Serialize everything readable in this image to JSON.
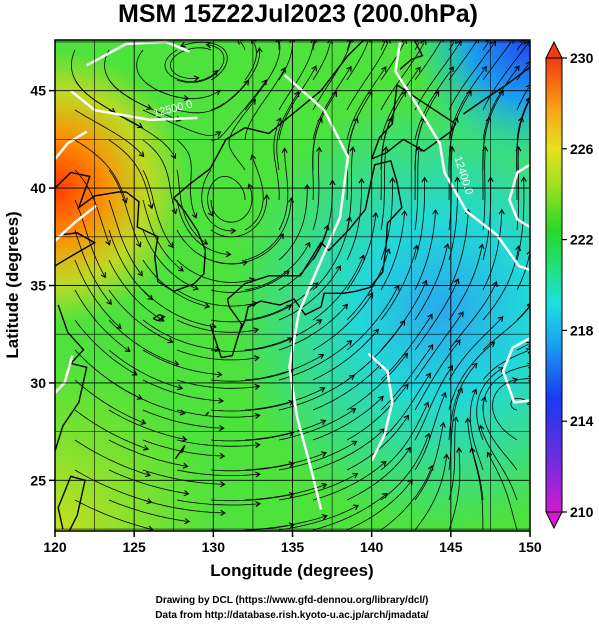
{
  "title": "MSM 15Z22Jul2023 (200.0hPa)",
  "x_axis": {
    "label": "Longitude (degrees)",
    "range": [
      120,
      150
    ],
    "ticks": [
      "120",
      "125",
      "130",
      "135",
      "140",
      "145",
      "150"
    ]
  },
  "y_axis": {
    "label": "Latitude  (degrees)",
    "range": [
      22.4,
      47.6
    ],
    "ticks": [
      "25",
      "30",
      "35",
      "40",
      "45"
    ]
  },
  "colorbar": {
    "range": [
      210,
      230
    ],
    "ticks": [
      "210",
      "214",
      "218",
      "222",
      "226",
      "230"
    ],
    "extend": "both"
  },
  "contour_labels": [
    {
      "text": "12500.0",
      "lon": 127.5,
      "lat": 43.9
    },
    {
      "text": "12400.0",
      "lon": 145.6,
      "lat": 40.6
    }
  ],
  "credits": {
    "line1": "Drawing by DCL (https://www.gfd-dennou.org/library/dcl/)",
    "line2": "Data from http://database.rish.kyoto-u.ac.jp/arch/jmadata/"
  },
  "colors": {
    "warm_area": "#ff4000",
    "mid_green": "#2fe03a",
    "cool_cyan": "#2ee6d2",
    "cold_blue": "#2a6cf0",
    "contour_line": "#ffffff",
    "streamline": "#000000"
  }
}
